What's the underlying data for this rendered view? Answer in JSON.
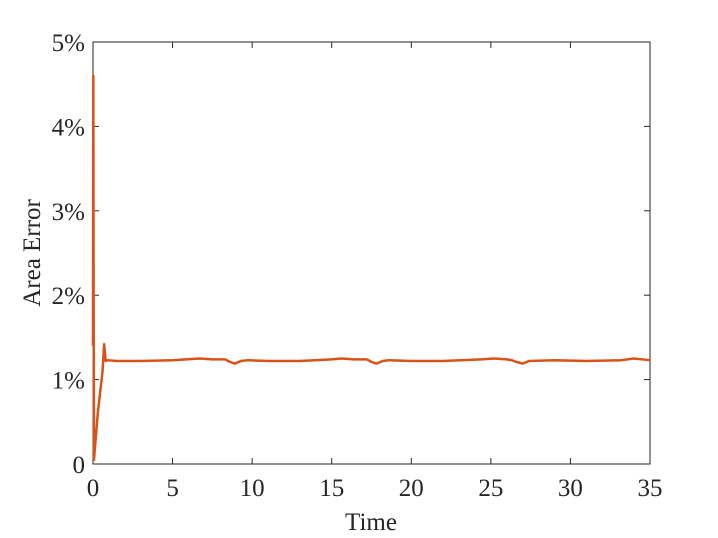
{
  "chart_data": {
    "type": "line",
    "x_label": "Time",
    "y_label": "Area Error",
    "series": [
      {
        "name": "area-error",
        "color": "#d95319",
        "x": [
          0,
          0.02,
          0.04,
          0.06,
          0.3,
          0.6,
          0.7,
          0.8,
          0.9,
          1.5,
          3,
          5,
          6.7,
          7.5,
          8.3,
          8.6,
          8.9,
          9.3,
          9.7,
          11,
          13,
          15,
          15.6,
          16.4,
          17.2,
          17.5,
          17.8,
          18.2,
          18.6,
          20,
          22,
          24.4,
          25.2,
          26,
          26.3,
          26.6,
          27,
          27.4,
          29,
          31,
          33.2,
          34,
          35
        ],
        "values": [
          1.4,
          4.6,
          2.0,
          0.05,
          0.6,
          1.1,
          1.42,
          1.22,
          1.23,
          1.22,
          1.22,
          1.23,
          1.25,
          1.24,
          1.24,
          1.21,
          1.19,
          1.22,
          1.23,
          1.22,
          1.22,
          1.24,
          1.25,
          1.24,
          1.24,
          1.21,
          1.19,
          1.22,
          1.23,
          1.22,
          1.22,
          1.24,
          1.25,
          1.24,
          1.23,
          1.21,
          1.19,
          1.22,
          1.23,
          1.22,
          1.23,
          1.25,
          1.23
        ]
      }
    ],
    "xlim": [
      0,
      35
    ],
    "xticks": [
      0,
      5,
      10,
      15,
      20,
      25,
      30,
      35
    ],
    "ylim": [
      0,
      5
    ],
    "yticks": [
      0,
      {
        "value": 1,
        "label": "1%"
      },
      {
        "value": 2,
        "label": "2%"
      },
      {
        "value": 3,
        "label": "3%"
      },
      {
        "value": 4,
        "label": "4%"
      },
      {
        "value": 5,
        "label": "5%"
      }
    ],
    "grid": false
  }
}
